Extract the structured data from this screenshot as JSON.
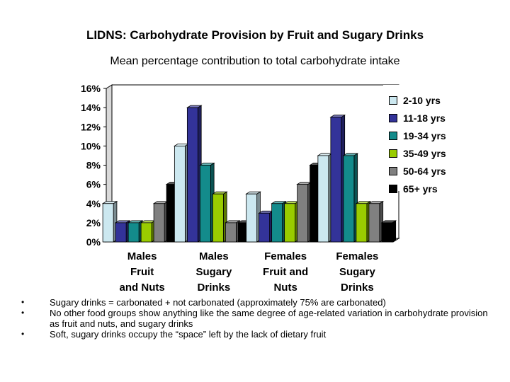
{
  "header": {
    "title": "LIDNS: Carbohydrate Provision by Fruit and Sugary Drinks",
    "subtitle": "Mean percentage contribution to total carbohydrate intake"
  },
  "chart_data": {
    "type": "bar",
    "title": "LIDNS: Carbohydrate Provision by Fruit and Sugary Drinks",
    "subtitle": "Mean percentage contribution to total carbohydrate intake",
    "xlabel": "",
    "ylabel": "",
    "ylim": [
      0,
      16
    ],
    "yticks": [
      "0%",
      "2%",
      "4%",
      "6%",
      "8%",
      "10%",
      "12%",
      "14%",
      "16%"
    ],
    "y_tick_values": [
      0,
      2,
      4,
      6,
      8,
      10,
      12,
      14,
      16
    ],
    "categories": [
      [
        "Males",
        "Fruit",
        "and Nuts"
      ],
      [
        "Males",
        "Sugary",
        "Drinks"
      ],
      [
        "Females",
        "Fruit and",
        "Nuts"
      ],
      [
        "Females",
        "Sugary",
        "Drinks"
      ]
    ],
    "series": [
      {
        "name": "2-10 yrs",
        "color": "#cce8f0",
        "values": [
          4,
          10,
          5,
          9
        ]
      },
      {
        "name": "11-18 yrs",
        "color": "#333399",
        "values": [
          2,
          14,
          3,
          13
        ]
      },
      {
        "name": "19-34 yrs",
        "color": "#138b8b",
        "values": [
          2,
          8,
          4,
          9
        ]
      },
      {
        "name": "35-49 yrs",
        "color": "#99cc00",
        "values": [
          2,
          5,
          4,
          4
        ]
      },
      {
        "name": "50-64 yrs",
        "color": "#808080",
        "values": [
          4,
          2,
          6,
          4
        ]
      },
      {
        "name": "65+ yrs",
        "color": "#000000",
        "values": [
          6,
          2,
          8,
          2
        ]
      }
    ],
    "legend_position": "top-right",
    "grid": false,
    "three_d": true
  },
  "notes": [
    "Sugary drinks = carbonated + not carbonated (approximately 75% are carbonated)",
    "No other food groups show anything like the same degree of age-related variation in carbohydrate provision as fruit and nuts, and sugary drinks",
    "Soft, sugary drinks occupy the “space” left by the lack of dietary fruit"
  ]
}
